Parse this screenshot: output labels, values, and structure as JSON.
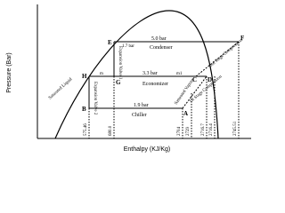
{
  "axes": {
    "y_label": "Pressure (Bar)",
    "x_label": "Enthalpy (KJ/Kg)"
  },
  "points": {
    "E": "E",
    "F": "F",
    "H": "H",
    "G": "G",
    "B": "B",
    "A": "A",
    "C": "C",
    "D": "D"
  },
  "pressures": {
    "high": "5.0 bar",
    "mid": "3.3 bar",
    "low": "1.9 bar",
    "valve": "1.7 bar"
  },
  "regions": {
    "condenser": "Condenser",
    "economizer": "Economizer",
    "chiller": "Chiller"
  },
  "flows": {
    "m": "m",
    "m1": "m1"
  },
  "processes": {
    "valve1": "Expansion Valve 1",
    "valve2": "Expansion Valve 2",
    "stage1": "1st Stage Compression",
    "stage2": "2nd Stage Compression",
    "sat_liquid": "Saturated Liquid",
    "sat_vapour": "Saturated Vapour"
  },
  "enthalpies": [
    "575.46",
    "680.0",
    "2704",
    "2729",
    "2716.7",
    "2716.4",
    "2745.51"
  ]
}
